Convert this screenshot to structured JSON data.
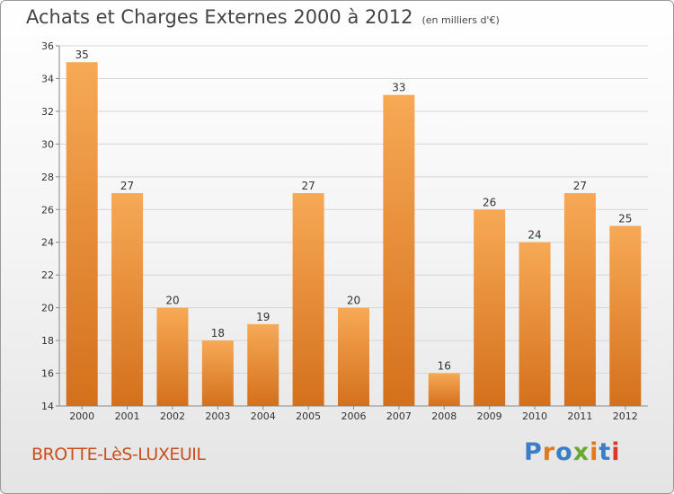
{
  "header": {
    "title": "Achats et Charges Externes 2000 à 2012",
    "subtitle": "(en milliers d'€)"
  },
  "footer": {
    "town": "BROTTE-LèS-LUXEUIL",
    "brand": "Proxiti",
    "brand_colors": [
      "#3a7ec8",
      "#e07a1f",
      "#3a7ec8",
      "#6aa832",
      "#e07a1f",
      "#3a7ec8",
      "#d83a2a"
    ]
  },
  "colors": {
    "bar_light": "#f7a955",
    "bar_dark": "#d4701c",
    "town": "#c8501c"
  },
  "chart_data": {
    "type": "bar",
    "categories": [
      "2000",
      "2001",
      "2002",
      "2003",
      "2004",
      "2005",
      "2006",
      "2007",
      "2008",
      "2009",
      "2010",
      "2011",
      "2012"
    ],
    "values": [
      35,
      27,
      20,
      18,
      19,
      27,
      20,
      33,
      16,
      26,
      24,
      27,
      25
    ],
    "ylim": [
      14,
      36
    ],
    "yticks": [
      14,
      16,
      18,
      20,
      22,
      24,
      26,
      28,
      30,
      32,
      34,
      36
    ],
    "grid": true
  }
}
